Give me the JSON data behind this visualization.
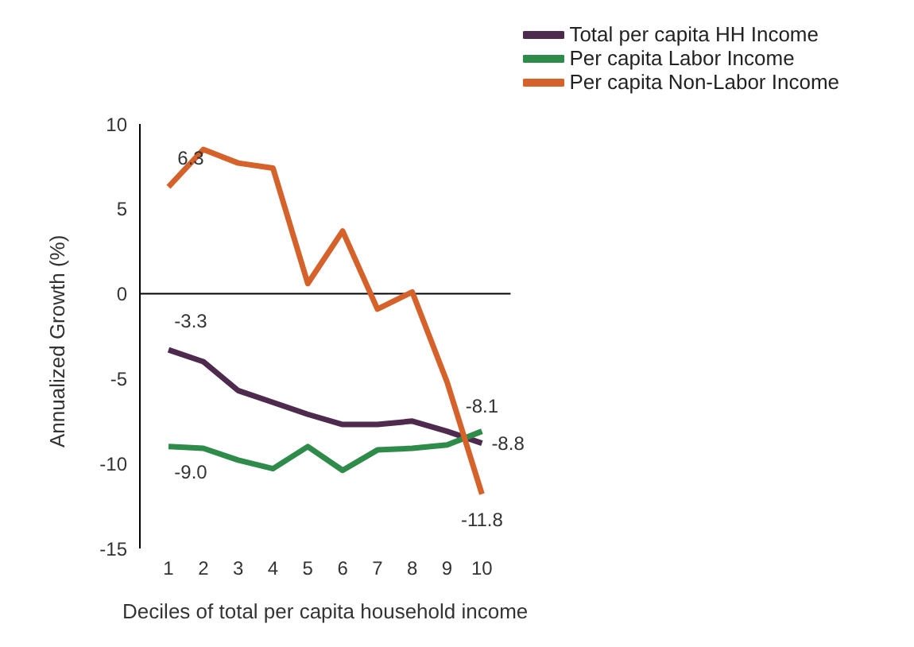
{
  "chart_data": {
    "type": "line",
    "xlabel": "Deciles of total per capita household income",
    "ylabel": "Annualized Growth (%)",
    "categories": [
      "1",
      "2",
      "3",
      "4",
      "5",
      "6",
      "7",
      "8",
      "9",
      "10"
    ],
    "ylim": [
      -15,
      10
    ],
    "yticks": [
      -15,
      -10,
      -5,
      0,
      5,
      10
    ],
    "grid": false,
    "legend": "top right",
    "marker": "none",
    "line_style": "solid",
    "ref_lines": [
      {
        "axis": "y",
        "value": 0,
        "color": "#000000"
      }
    ],
    "series": [
      {
        "name": "Total per capita HH Income",
        "color": "#4e2a4f",
        "values": [
          -3.3,
          -4.0,
          -5.7,
          -6.4,
          -7.1,
          -7.7,
          -7.7,
          -7.5,
          -8.1,
          -8.8
        ],
        "value_labels": [
          "-3.3",
          null,
          null,
          null,
          null,
          null,
          null,
          null,
          null,
          "-8.8"
        ]
      },
      {
        "name": "Per capita Labor Income",
        "color": "#2e8b4a",
        "values": [
          -9.0,
          -9.1,
          -9.8,
          -10.3,
          -9.0,
          -10.4,
          -9.2,
          -9.1,
          -8.9,
          -8.1
        ],
        "value_labels": [
          "-9.0",
          null,
          null,
          null,
          null,
          null,
          null,
          null,
          null,
          "-8.1"
        ]
      },
      {
        "name": "Per capita Non-Labor Income",
        "color": "#d4622a",
        "values": [
          6.3,
          8.5,
          7.7,
          7.4,
          0.6,
          3.7,
          -0.9,
          0.1,
          -5.2,
          -11.8
        ],
        "value_labels": [
          "6.3",
          null,
          null,
          null,
          null,
          null,
          null,
          null,
          null,
          "-11.8"
        ]
      }
    ]
  }
}
